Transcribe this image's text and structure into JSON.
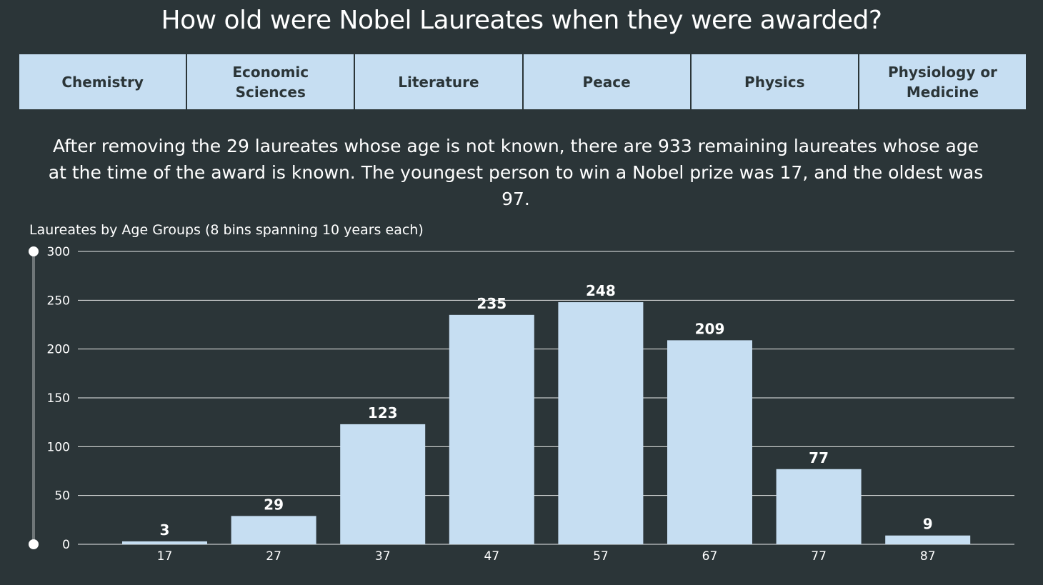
{
  "page": {
    "title": "How old were Nobel Laureates when they were awarded?",
    "tabs": [
      {
        "label": "Chemistry"
      },
      {
        "label": "Economic Sciences"
      },
      {
        "label": "Literature"
      },
      {
        "label": "Peace"
      },
      {
        "label": "Physics"
      },
      {
        "label": "Physiology or Medicine"
      }
    ],
    "description": "After removing the 29 laureates whose age is not known, there are 933 remaining laureates whose age at the time of the award is known.  The youngest person to win a Nobel prize was 17, and the oldest was 97."
  },
  "colors": {
    "background": "#2b3538",
    "bar": "#c6def2",
    "text": "#ffffff",
    "tab_text": "#2b3538"
  },
  "chart_data": {
    "type": "bar",
    "title": "Laureates by Age Groups (8 bins spanning 10 years each)",
    "categories": [
      "17",
      "27",
      "37",
      "47",
      "57",
      "67",
      "77",
      "87"
    ],
    "values": [
      3,
      29,
      123,
      235,
      248,
      209,
      77,
      9
    ],
    "yticks": [
      0,
      50,
      100,
      150,
      200,
      250,
      300
    ],
    "ylim": [
      0,
      300
    ],
    "grid": true,
    "data_labels": true
  }
}
